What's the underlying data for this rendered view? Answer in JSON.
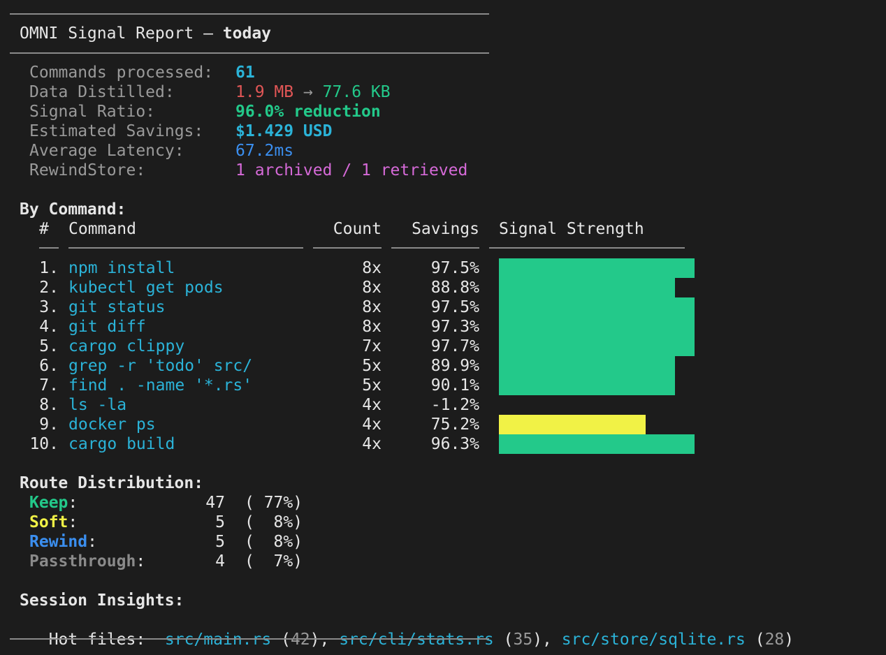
{
  "header": {
    "title_prefix": "OMNI Signal Report — ",
    "title_period": "today"
  },
  "summary": [
    {
      "label": "Commands processed:",
      "value": "61"
    },
    {
      "label": "Data Distilled:",
      "value_from": "1.9 MB",
      "arrow": "→",
      "value_to": "77.6 KB"
    },
    {
      "label": "Signal Ratio:",
      "value": "96.0% reduction"
    },
    {
      "label": "Estimated Savings:",
      "value": "$1.429 USD"
    },
    {
      "label": "Average Latency:",
      "value": "67.2ms"
    },
    {
      "label": "RewindStore:",
      "value": "1 archived / 1 retrieved"
    }
  ],
  "by_command": {
    "heading": "By Command:",
    "columns": {
      "num": "#",
      "command": "Command",
      "count": "Count",
      "savings": "Savings",
      "signal": "Signal Strength"
    },
    "rows": [
      {
        "num": "1.",
        "command": "npm install",
        "count": "8x",
        "savings": "97.5%",
        "signal": 97.5,
        "color": "#23c98a"
      },
      {
        "num": "2.",
        "command": "kubectl get pods",
        "count": "8x",
        "savings": "88.8%",
        "signal": 88.8,
        "color": "#23c98a"
      },
      {
        "num": "3.",
        "command": "git status",
        "count": "8x",
        "savings": "97.5%",
        "signal": 97.5,
        "color": "#23c98a"
      },
      {
        "num": "4.",
        "command": "git diff",
        "count": "8x",
        "savings": "97.3%",
        "signal": 97.3,
        "color": "#23c98a"
      },
      {
        "num": "5.",
        "command": "cargo clippy",
        "count": "7x",
        "savings": "97.7%",
        "signal": 97.7,
        "color": "#23c98a"
      },
      {
        "num": "6.",
        "command": "grep -r 'todo' src/",
        "count": "5x",
        "savings": "89.9%",
        "signal": 89.9,
        "color": "#23c98a"
      },
      {
        "num": "7.",
        "command": "find . -name '*.rs'",
        "count": "5x",
        "savings": "90.1%",
        "signal": 90.1,
        "color": "#23c98a"
      },
      {
        "num": "8.",
        "command": "ls -la",
        "count": "4x",
        "savings": "-1.2%",
        "signal": 0,
        "color": "#23c98a"
      },
      {
        "num": "9.",
        "command": "docker ps",
        "count": "4x",
        "savings": "75.2%",
        "signal": 75.2,
        "color": "#f1f246"
      },
      {
        "num": "10.",
        "command": "cargo build",
        "count": "4x",
        "savings": "96.3%",
        "signal": 96.3,
        "color": "#23c98a"
      }
    ]
  },
  "routes": {
    "heading": "Route Distribution:",
    "items": [
      {
        "name": "Keep",
        "count": "47",
        "pct": "( 77%)",
        "color": "#23c98a"
      },
      {
        "name": "Soft",
        "count": "5",
        "pct": "(  8%)",
        "color": "#f1f246"
      },
      {
        "name": "Rewind",
        "count": "5",
        "pct": "(  8%)",
        "color": "#3b8ff0"
      },
      {
        "name": "Passthrough",
        "count": "4",
        "pct": "(  7%)",
        "color": "#8a8a8a"
      }
    ]
  },
  "insights": {
    "heading": "Session Insights:",
    "hot_label": "Hot files:",
    "files": [
      {
        "path": "src/main.rs",
        "count": "42"
      },
      {
        "path": "src/cli/stats.rs",
        "count": "35"
      },
      {
        "path": "src/store/sqlite.rs",
        "count": "28"
      }
    ]
  }
}
